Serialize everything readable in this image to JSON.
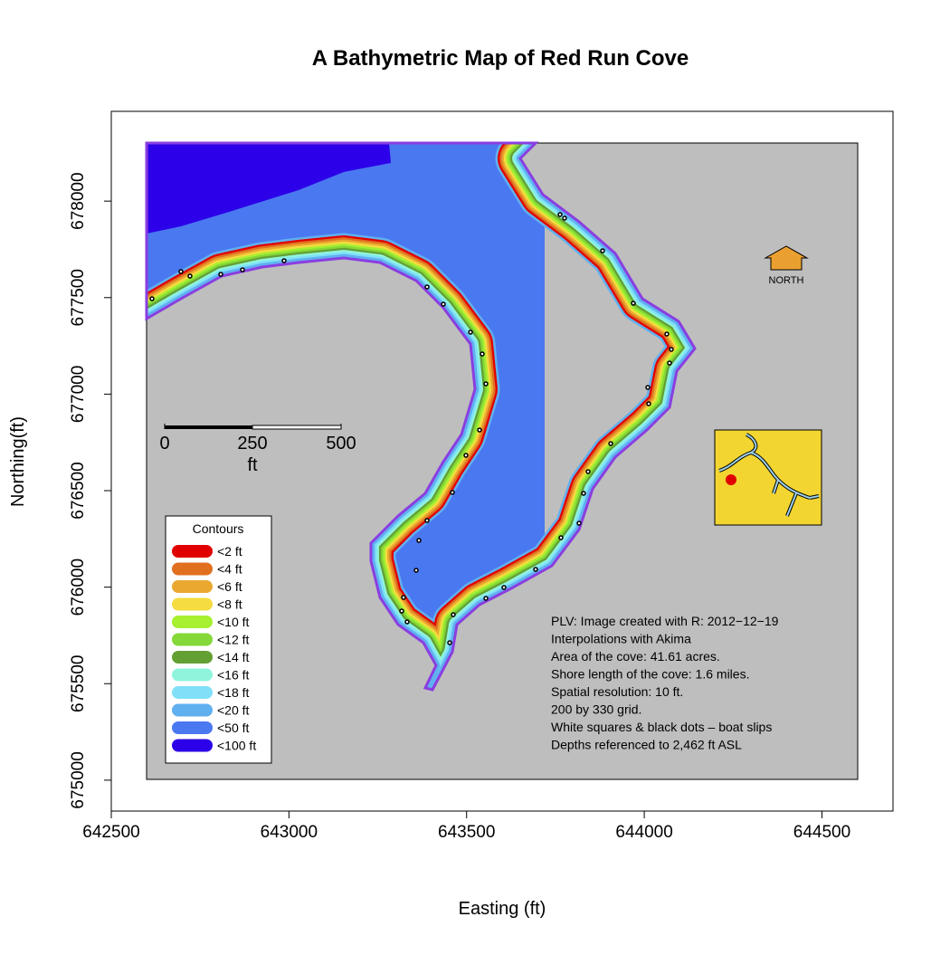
{
  "chart_data": {
    "type": "map",
    "title": "A Bathymetric Map of  Red Run Cove",
    "xlabel": "Easting (ft)",
    "ylabel": "Northing(ft)",
    "xlim": [
      642500,
      644700
    ],
    "ylim": [
      674840,
      678465
    ],
    "xticks": [
      642500,
      643000,
      643500,
      644000,
      644500
    ],
    "yticks": [
      675000,
      675500,
      676000,
      676500,
      677000,
      677500,
      678000
    ],
    "legend": {
      "title": "Contours",
      "items": [
        {
          "label": "<2 ft",
          "color": "#e00000"
        },
        {
          "label": "<4 ft",
          "color": "#e07020"
        },
        {
          "label": "<6 ft",
          "color": "#eaa830"
        },
        {
          "label": "<8 ft",
          "color": "#f5dc40"
        },
        {
          "label": "<10 ft",
          "color": "#a6f030"
        },
        {
          "label": "<12 ft",
          "color": "#84d838"
        },
        {
          "label": "<14 ft",
          "color": "#63a034"
        },
        {
          "label": "<16 ft",
          "color": "#90f4dc"
        },
        {
          "label": "<18 ft",
          "color": "#80e0f8"
        },
        {
          "label": "<20 ft",
          "color": "#60b0f0"
        },
        {
          "label": "<50 ft",
          "color": "#4a78f0"
        },
        {
          "label": "<100 ft",
          "color": "#2c00e8"
        }
      ]
    },
    "scale_bar": {
      "labels": [
        "0",
        "250",
        "500"
      ],
      "unit": "ft"
    },
    "north_label": "NORTH",
    "notes": [
      "PLV: Image created with R: 2012−12−19",
      "Interpolations with Akima",
      "Area of the cove: 41.61 acres.",
      "Shore length of the cove: 1.6 miles.",
      "Spatial resolution: 10 ft.",
      "200 by 330 grid.",
      "White squares & black dots – boat slips",
      "Depths referenced to 2,462 ft ASL"
    ]
  }
}
